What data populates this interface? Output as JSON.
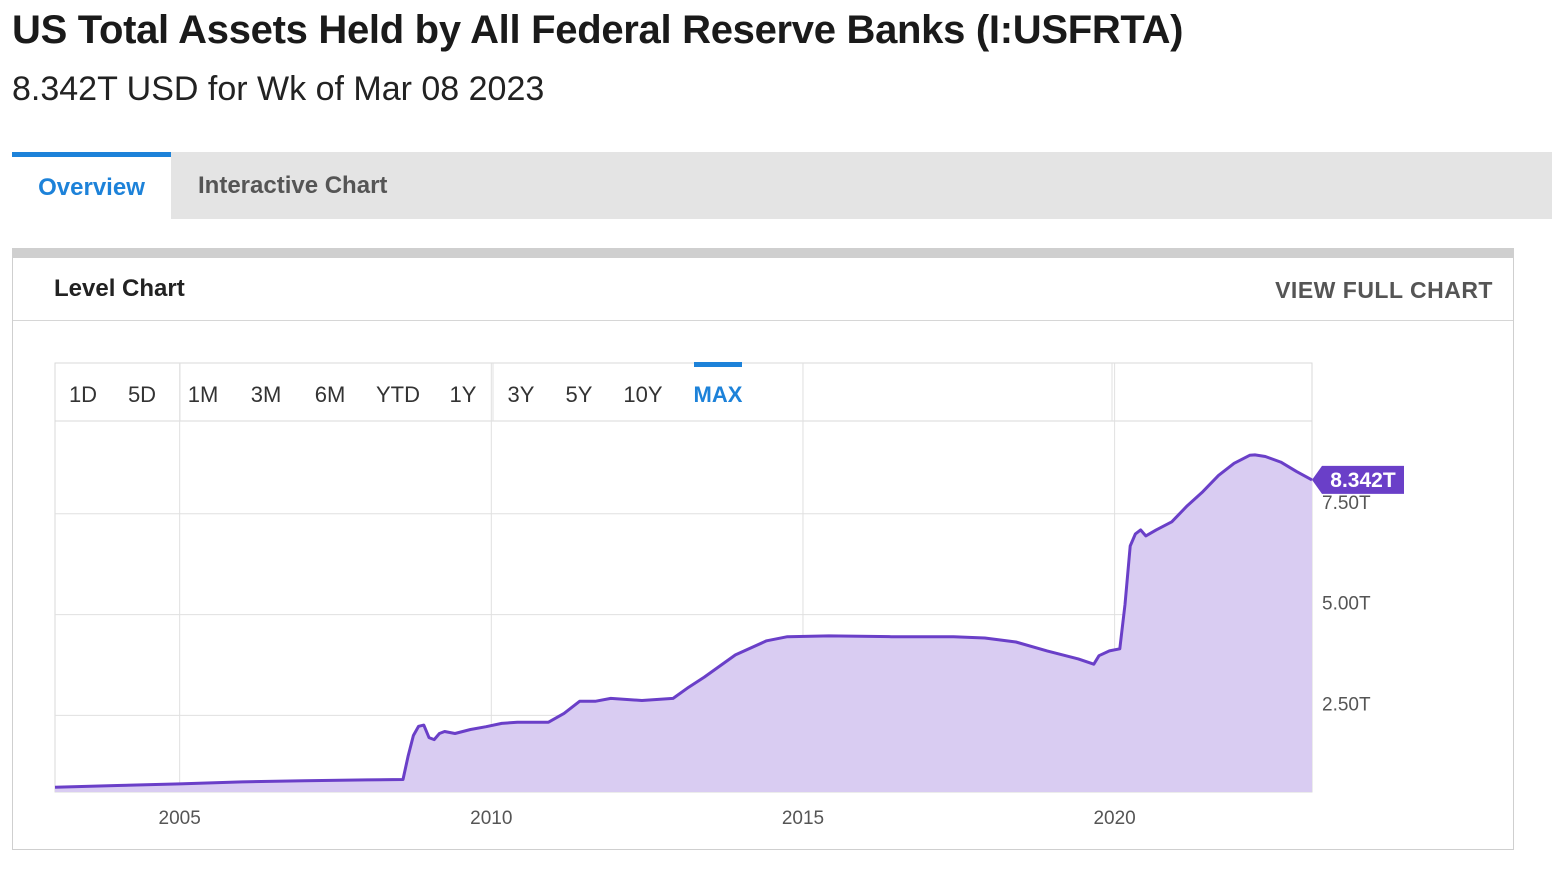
{
  "header": {
    "title": "US Total Assets Held by All Federal Reserve Banks (I:USFRTA)",
    "subtitle": "8.342T USD for Wk of Mar 08 2023"
  },
  "tabs": [
    {
      "label": "Overview",
      "active": true
    },
    {
      "label": "Interactive Chart",
      "active": false
    }
  ],
  "card": {
    "title": "Level Chart",
    "link": "VIEW FULL CHART"
  },
  "ranges": [
    "1D",
    "5D",
    "1M",
    "3M",
    "6M",
    "YTD",
    "1Y",
    "3Y",
    "5Y",
    "10Y",
    "MAX"
  ],
  "active_range": "MAX",
  "colors": {
    "accent": "#1d82d9",
    "line": "#6a3fc8",
    "fill": "#d9ccf2",
    "badge": "#6a3fc8"
  },
  "chart_data": {
    "type": "area",
    "title": "",
    "xlabel": "",
    "ylabel": "",
    "x_ticks": [
      "2005",
      "2010",
      "2015",
      "2020"
    ],
    "y_ticks": [
      "2.50T",
      "5.00T",
      "7.50T"
    ],
    "ylim": [
      0.6,
      9.8
    ],
    "xlim": [
      "2003-01",
      "2023-03"
    ],
    "last_value_label": "8.342T",
    "series": [
      {
        "values_unit": "T USD",
        "x": [
          "2003-01",
          "2004-01",
          "2005-01",
          "2006-01",
          "2007-01",
          "2008-01",
          "2008-08",
          "2008-09",
          "2008-10",
          "2008-11",
          "2008-12",
          "2009-01",
          "2009-02",
          "2009-03",
          "2009-04",
          "2009-06",
          "2009-09",
          "2009-12",
          "2010-03",
          "2010-06",
          "2010-12",
          "2011-03",
          "2011-06",
          "2011-09",
          "2011-12",
          "2012-06",
          "2012-12",
          "2013-03",
          "2013-06",
          "2013-12",
          "2014-06",
          "2014-10",
          "2015-06",
          "2016-06",
          "2017-06",
          "2017-12",
          "2018-06",
          "2018-12",
          "2019-06",
          "2019-09",
          "2019-10",
          "2019-12",
          "2020-02",
          "2020-03",
          "2020-04",
          "2020-05",
          "2020-06",
          "2020-07",
          "2020-09",
          "2020-12",
          "2021-03",
          "2021-06",
          "2021-09",
          "2021-12",
          "2022-03",
          "2022-04",
          "2022-06",
          "2022-09",
          "2022-12",
          "2023-03"
        ],
        "values": [
          0.72,
          0.76,
          0.8,
          0.85,
          0.88,
          0.9,
          0.91,
          1.5,
          2.0,
          2.23,
          2.26,
          1.95,
          1.9,
          2.05,
          2.1,
          2.05,
          2.15,
          2.22,
          2.3,
          2.33,
          2.33,
          2.55,
          2.85,
          2.85,
          2.92,
          2.87,
          2.92,
          3.2,
          3.45,
          4.0,
          4.35,
          4.45,
          4.47,
          4.45,
          4.45,
          4.42,
          4.32,
          4.1,
          3.9,
          3.77,
          3.98,
          4.1,
          4.15,
          5.25,
          6.7,
          7.0,
          7.1,
          6.95,
          7.1,
          7.3,
          7.7,
          8.05,
          8.45,
          8.75,
          8.95,
          8.96,
          8.92,
          8.78,
          8.55,
          8.34
        ]
      }
    ]
  }
}
